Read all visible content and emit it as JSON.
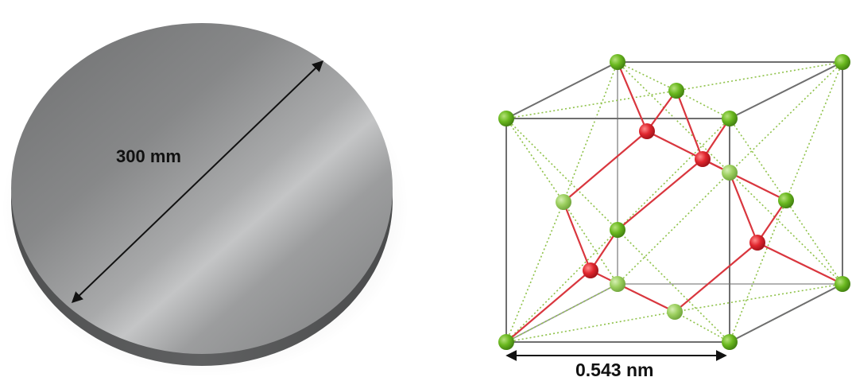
{
  "wafer": {
    "diameter_label": "300 mm"
  },
  "lattice": {
    "constant_label": "0.543 nm"
  },
  "colors": {
    "background": "#ffffff",
    "wafer_gray": "#8a8b8c",
    "cube_edge": "#6e6e6e",
    "bond_red": "#d9363e",
    "atom_red": "#e0262e",
    "atom_green": "#6ab81f",
    "dotted_green": "#8fc24a"
  }
}
